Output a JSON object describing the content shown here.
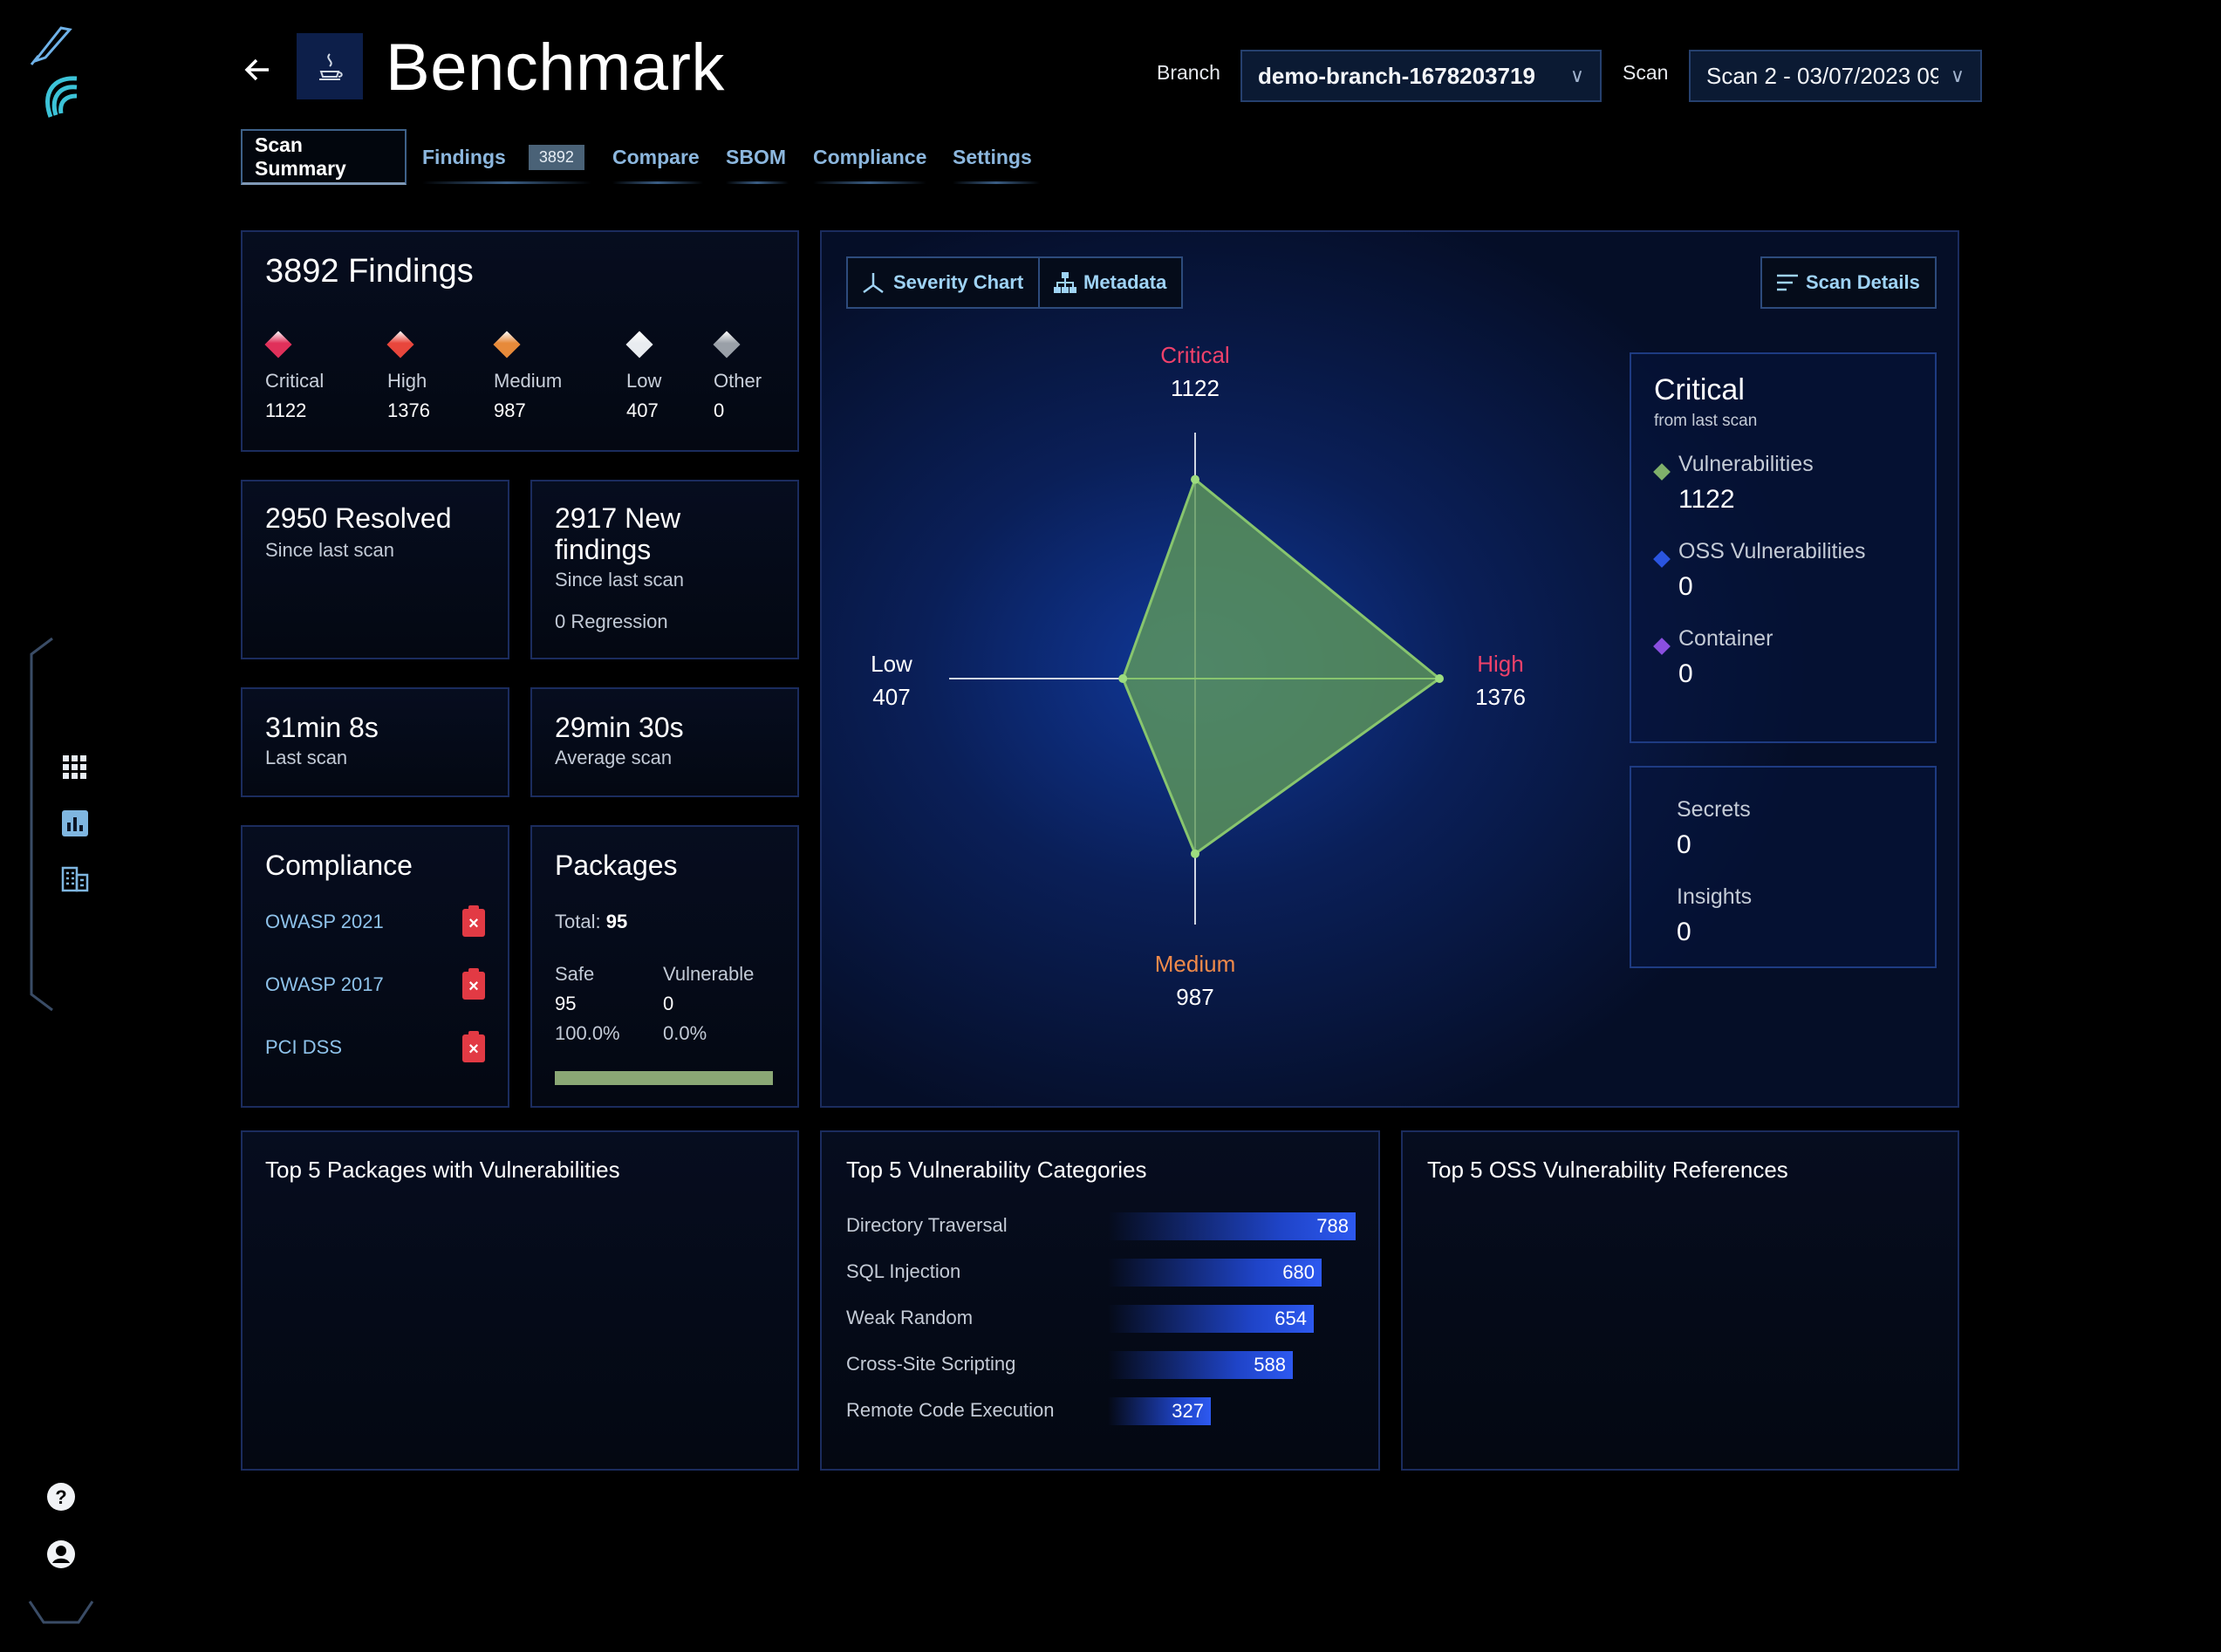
{
  "sidebar": {
    "top_icons": [
      "pen-logo-icon",
      "feather-logo-icon"
    ],
    "nav_icons": [
      "apps-grid-icon",
      "bar-chart-icon",
      "building-icon"
    ],
    "bottom_icons": [
      "help-icon",
      "account-icon"
    ]
  },
  "header": {
    "back_icon": "arrow-left-icon",
    "language_icon": "java-icon",
    "title": "Benchmark",
    "branch_label": "Branch",
    "branch_value": "demo-branch-1678203719",
    "scan_label": "Scan",
    "scan_value": "Scan 2 - 03/07/2023 09"
  },
  "tabs": [
    {
      "label": "Scan Summary"
    },
    {
      "label": "Findings",
      "badge": "3892"
    },
    {
      "label": "Compare"
    },
    {
      "label": "SBOM"
    },
    {
      "label": "Compliance"
    },
    {
      "label": "Settings"
    }
  ],
  "findings": {
    "title": "3892 Findings",
    "items": [
      {
        "label": "Critical",
        "value": "1122",
        "color": "#e0305a"
      },
      {
        "label": "High",
        "value": "1376",
        "color": "#e8463c"
      },
      {
        "label": "Medium",
        "value": "987",
        "color": "#e78a3a"
      },
      {
        "label": "Low",
        "value": "407",
        "color": "#e9ecf0"
      },
      {
        "label": "Other",
        "value": "0",
        "color": "#9aa0a8"
      }
    ]
  },
  "resolved": {
    "title": "2950 Resolved",
    "sub": "Since last scan"
  },
  "new_findings": {
    "title": "2917 New findings",
    "sub": "Since last scan",
    "regression": "0 Regression"
  },
  "last_scan": {
    "title": "31min 8s",
    "sub": "Last scan"
  },
  "avg_scan": {
    "title": "29min 30s",
    "sub": "Average scan"
  },
  "compliance": {
    "title": "Compliance",
    "items": [
      {
        "label": "OWASP 2021",
        "status_icon": "failed-clipboard-icon"
      },
      {
        "label": "OWASP 2017",
        "status_icon": "failed-clipboard-icon"
      },
      {
        "label": "PCI DSS",
        "status_icon": "failed-clipboard-icon"
      }
    ]
  },
  "packages": {
    "title": "Packages",
    "total_label": "Total:",
    "total_value": "95",
    "safe_label": "Safe",
    "safe_value": "95",
    "safe_pct": "100.0%",
    "vuln_label": "Vulnerable",
    "vuln_value": "0",
    "vuln_pct": "0.0%",
    "safe_fraction": 1.0,
    "bar_color": "#8aa775"
  },
  "chart_panel": {
    "severity_btn": "Severity Chart",
    "metadata_btn": "Metadata",
    "scan_details_btn": "Scan Details"
  },
  "chart_data": {
    "type": "radar",
    "axes": [
      {
        "label": "Critical",
        "value": 1122,
        "label_color": "#f0416a"
      },
      {
        "label": "High",
        "value": 1376,
        "label_color": "#f0416a"
      },
      {
        "label": "Medium",
        "value": 987,
        "label_color": "#f08a4a"
      },
      {
        "label": "Low",
        "value": 407,
        "label_color": "#ffffff"
      }
    ],
    "fill_color": "#5f9a5a"
  },
  "critical_panel": {
    "title": "Critical",
    "sub": "from last scan",
    "items": [
      {
        "label": "Vulnerabilities",
        "value": "1122",
        "color": "#7fb06a"
      },
      {
        "label": "OSS Vulnerabilities",
        "value": "0",
        "color": "#2a55e0"
      },
      {
        "label": "Container",
        "value": "0",
        "color": "#8a4fe0"
      }
    ]
  },
  "secrets_panel": {
    "secrets_label": "Secrets",
    "secrets_value": "0",
    "insights_label": "Insights",
    "insights_value": "0"
  },
  "top_packages": {
    "title": "Top 5 Packages with Vulnerabilities"
  },
  "top_categories": {
    "title": "Top 5 Vulnerability Categories",
    "items": [
      {
        "label": "Directory Traversal",
        "value": 788
      },
      {
        "label": "SQL Injection",
        "value": 680
      },
      {
        "label": "Weak Random",
        "value": 654
      },
      {
        "label": "Cross-Site Scripting",
        "value": 588
      },
      {
        "label": "Remote Code Execution",
        "value": 327
      }
    ]
  },
  "top_oss": {
    "title": "Top 5 OSS Vulnerability References"
  }
}
